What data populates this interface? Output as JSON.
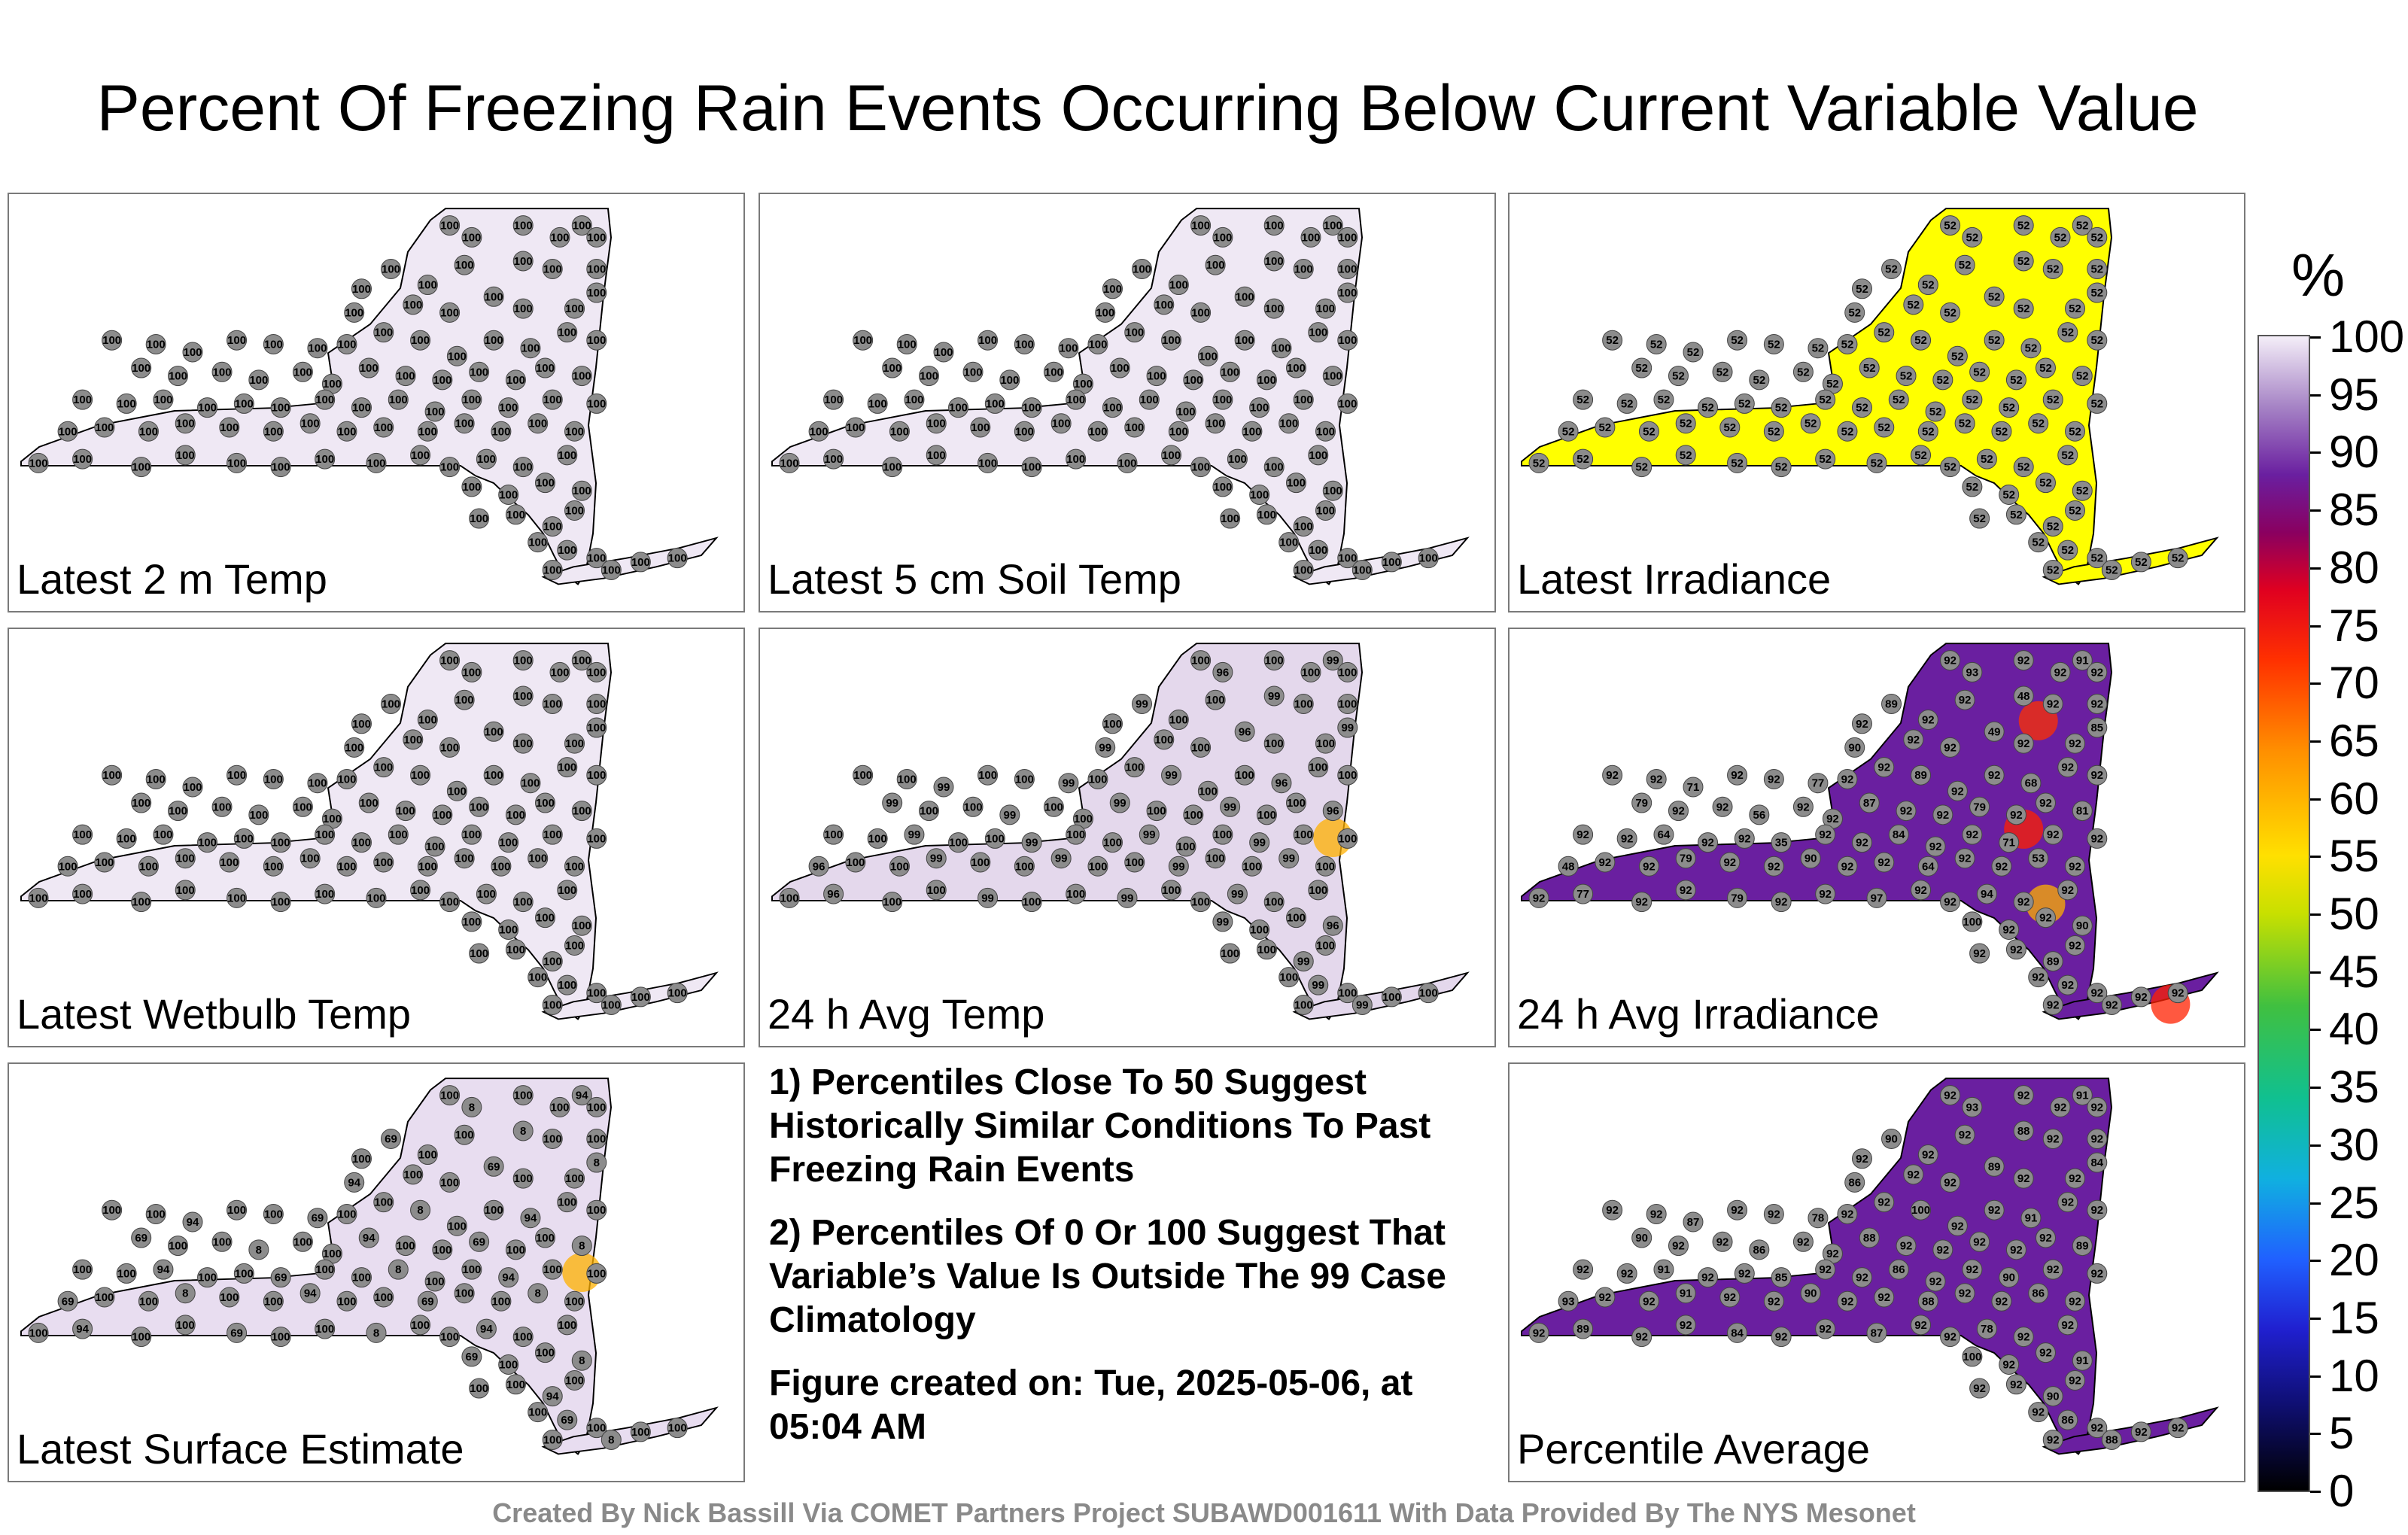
{
  "title": "Percent Of Freezing Rain Events Occurring Below Current Variable Value",
  "panels": [
    {
      "label": "Latest 2 m Temp",
      "fill": "#efe8f4",
      "mode": "uniform",
      "value": "100"
    },
    {
      "label": "Latest 5 cm Soil Temp",
      "fill": "#efe8f4",
      "mode": "uniform",
      "value": "100"
    },
    {
      "label": "Latest Irradiance",
      "fill": "#ffff00",
      "mode": "uniform",
      "value": "52"
    },
    {
      "label": "Latest Wetbulb Temp",
      "fill": "#efe8f4",
      "mode": "uniform",
      "value": "100"
    },
    {
      "label": "24 h Avg Temp",
      "fill": "#e4d8ec",
      "mode": "mostly",
      "value": "100",
      "alt": [
        "96",
        "99",
        "99",
        "99",
        "99"
      ]
    },
    {
      "label": "24 h Avg Irradiance",
      "fill": "#6a1fa0",
      "mode": "mixed",
      "value": "92",
      "alt": [
        "93",
        "91",
        "89",
        "48",
        "90",
        "49",
        "85",
        "71",
        "77",
        "89",
        "68",
        "79",
        "56",
        "87",
        "79",
        "81",
        "64",
        "35",
        "84",
        "71",
        "48",
        "79",
        "90",
        "64",
        "53",
        "77",
        "79",
        "97",
        "94",
        "100",
        "90",
        "89",
        "92",
        "92",
        "91",
        "89",
        "81",
        "83"
      ]
    },
    {
      "label": "Latest Surface Estimate",
      "fill": "#e8ddf0",
      "mode": "mostly",
      "value": "100",
      "alt": [
        "8",
        "94",
        "69"
      ]
    },
    {
      "label": "Percentile Average",
      "fill": "#6a1fa0",
      "mode": "mixed",
      "value": "92",
      "alt": [
        "93",
        "91",
        "90",
        "88",
        "86",
        "89",
        "84",
        "87",
        "78",
        "100",
        "91",
        "90",
        "86",
        "88",
        "92",
        "89",
        "91",
        "85",
        "86",
        "90"
      ]
    }
  ],
  "notes": [
    "1) Percentiles Close To 50 Suggest Historically Similar Conditions To Past Freezing Rain Events",
    "2) Percentiles Of 0 Or 100 Suggest That Variable’s Value Is Outside The 99 Case Climatology",
    "Figure created on: Tue, 2025-05-06, at 05:04 AM"
  ],
  "colorbar": {
    "unit": "%",
    "ticks": [
      "100",
      "95",
      "90",
      "85",
      "80",
      "75",
      "70",
      "65",
      "60",
      "55",
      "50",
      "45",
      "40",
      "35",
      "30",
      "25",
      "20",
      "15",
      "10",
      "5",
      "0"
    ]
  },
  "credit": "Created By Nick Bassill Via COMET Partners Project SUBAWD001611 With Data Provided By The NYS Mesonet"
}
